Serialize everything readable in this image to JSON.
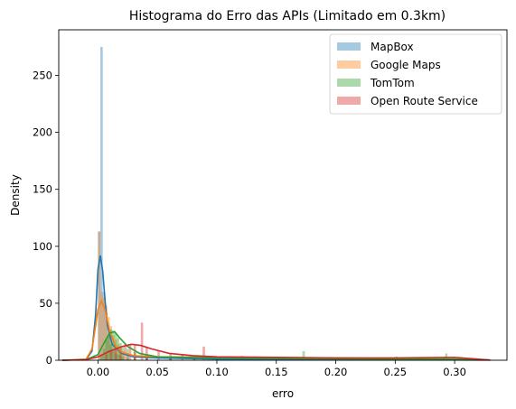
{
  "chart_data": {
    "type": "histogram",
    "title": "Histograma do Erro das APIs (Limitado em 0.3km)",
    "xlabel": "erro",
    "ylabel": "Density",
    "xlim": [
      -0.033,
      0.344
    ],
    "ylim": [
      0,
      290
    ],
    "xticks": [
      0.0,
      0.05,
      0.1,
      0.15,
      0.2,
      0.25,
      0.3
    ],
    "xtick_labels": [
      "0.00",
      "0.05",
      "0.10",
      "0.15",
      "0.20",
      "0.25",
      "0.30"
    ],
    "yticks": [
      0,
      50,
      100,
      150,
      200,
      250
    ],
    "ytick_labels": [
      "0",
      "50",
      "100",
      "150",
      "200",
      "250"
    ],
    "grid": false,
    "legend_position": "top-right",
    "series": [
      {
        "name": "MapBox",
        "color": "#1f77b4",
        "hist_bins": [
          [
            0.0,
            113
          ],
          [
            0.002,
            275
          ],
          [
            0.004,
            60
          ],
          [
            0.006,
            42
          ],
          [
            0.008,
            22
          ],
          [
            0.01,
            14
          ],
          [
            0.012,
            9
          ],
          [
            0.014,
            6
          ],
          [
            0.016,
            5
          ],
          [
            0.018,
            4
          ],
          [
            0.02,
            3
          ],
          [
            0.024,
            2
          ],
          [
            0.03,
            2
          ],
          [
            0.04,
            1.5
          ],
          [
            0.06,
            1
          ],
          [
            0.1,
            1
          ],
          [
            0.15,
            0.5
          ],
          [
            0.2,
            0.5
          ],
          [
            0.25,
            0.3
          ],
          [
            0.29,
            0.3
          ]
        ],
        "kde": [
          [
            -0.03,
            0
          ],
          [
            -0.01,
            0.5
          ],
          [
            -0.005,
            8
          ],
          [
            -0.002,
            40
          ],
          [
            0.0,
            80
          ],
          [
            0.002,
            92
          ],
          [
            0.004,
            78
          ],
          [
            0.006,
            52
          ],
          [
            0.008,
            30
          ],
          [
            0.012,
            14
          ],
          [
            0.02,
            6
          ],
          [
            0.03,
            3
          ],
          [
            0.05,
            2
          ],
          [
            0.1,
            1
          ],
          [
            0.2,
            0.5
          ],
          [
            0.3,
            0.3
          ],
          [
            0.33,
            0.1
          ]
        ]
      },
      {
        "name": "Google Maps",
        "color": "#ff7f0e",
        "hist_bins": [
          [
            0.0,
            113
          ],
          [
            0.002,
            60
          ],
          [
            0.004,
            55
          ],
          [
            0.006,
            48
          ],
          [
            0.008,
            38
          ],
          [
            0.01,
            30
          ],
          [
            0.012,
            22
          ],
          [
            0.014,
            18
          ],
          [
            0.016,
            14
          ],
          [
            0.018,
            10
          ],
          [
            0.02,
            8
          ],
          [
            0.024,
            6
          ],
          [
            0.03,
            5
          ],
          [
            0.04,
            4
          ],
          [
            0.06,
            3
          ],
          [
            0.08,
            3
          ],
          [
            0.1,
            2.5
          ],
          [
            0.12,
            4
          ],
          [
            0.15,
            2
          ],
          [
            0.2,
            2
          ],
          [
            0.25,
            3
          ],
          [
            0.29,
            2
          ]
        ],
        "kde": [
          [
            -0.03,
            0
          ],
          [
            -0.01,
            1
          ],
          [
            -0.005,
            10
          ],
          [
            -0.002,
            30
          ],
          [
            0.0,
            45
          ],
          [
            0.003,
            52
          ],
          [
            0.006,
            44
          ],
          [
            0.01,
            25
          ],
          [
            0.015,
            12
          ],
          [
            0.02,
            7
          ],
          [
            0.03,
            4
          ],
          [
            0.05,
            3
          ],
          [
            0.1,
            2.5
          ],
          [
            0.15,
            2
          ],
          [
            0.2,
            2
          ],
          [
            0.25,
            1.5
          ],
          [
            0.3,
            1
          ],
          [
            0.33,
            0.2
          ]
        ]
      },
      {
        "name": "TomTom",
        "color": "#2ca02c",
        "hist_bins": [
          [
            0.002,
            5
          ],
          [
            0.004,
            10
          ],
          [
            0.006,
            18
          ],
          [
            0.008,
            24
          ],
          [
            0.01,
            27
          ],
          [
            0.012,
            26
          ],
          [
            0.014,
            24
          ],
          [
            0.016,
            20
          ],
          [
            0.018,
            15
          ],
          [
            0.02,
            12
          ],
          [
            0.024,
            10
          ],
          [
            0.03,
            7
          ],
          [
            0.04,
            4
          ],
          [
            0.06,
            3
          ],
          [
            0.08,
            2.5
          ],
          [
            0.1,
            2
          ],
          [
            0.15,
            1.5
          ],
          [
            0.172,
            8
          ],
          [
            0.2,
            1.5
          ],
          [
            0.25,
            1.5
          ],
          [
            0.292,
            6
          ]
        ],
        "kde": [
          [
            -0.03,
            0
          ],
          [
            -0.01,
            0.5
          ],
          [
            0.0,
            5
          ],
          [
            0.005,
            15
          ],
          [
            0.01,
            24
          ],
          [
            0.014,
            25
          ],
          [
            0.018,
            20
          ],
          [
            0.025,
            12
          ],
          [
            0.035,
            6
          ],
          [
            0.05,
            3
          ],
          [
            0.1,
            2
          ],
          [
            0.15,
            1.5
          ],
          [
            0.2,
            1.2
          ],
          [
            0.25,
            1
          ],
          [
            0.3,
            1
          ],
          [
            0.33,
            0.2
          ]
        ]
      },
      {
        "name": "Open Route Service",
        "color": "#d62728",
        "hist_bins": [
          [
            0.006,
            5
          ],
          [
            0.01,
            8
          ],
          [
            0.014,
            10
          ],
          [
            0.018,
            12
          ],
          [
            0.022,
            14
          ],
          [
            0.026,
            14
          ],
          [
            0.03,
            13
          ],
          [
            0.036,
            33
          ],
          [
            0.04,
            11
          ],
          [
            0.05,
            8
          ],
          [
            0.06,
            6
          ],
          [
            0.07,
            5
          ],
          [
            0.08,
            4
          ],
          [
            0.088,
            12
          ],
          [
            0.1,
            3
          ],
          [
            0.12,
            3
          ],
          [
            0.15,
            2.5
          ],
          [
            0.2,
            2
          ],
          [
            0.25,
            3
          ],
          [
            0.29,
            2
          ]
        ],
        "kde": [
          [
            -0.03,
            0
          ],
          [
            -0.01,
            0.5
          ],
          [
            0.0,
            3
          ],
          [
            0.01,
            8
          ],
          [
            0.02,
            12
          ],
          [
            0.028,
            14
          ],
          [
            0.036,
            13
          ],
          [
            0.045,
            10
          ],
          [
            0.06,
            6
          ],
          [
            0.08,
            4
          ],
          [
            0.1,
            3
          ],
          [
            0.15,
            2.5
          ],
          [
            0.2,
            2
          ],
          [
            0.25,
            2
          ],
          [
            0.3,
            2.5
          ],
          [
            0.32,
            1
          ],
          [
            0.33,
            0.2
          ]
        ]
      }
    ]
  }
}
